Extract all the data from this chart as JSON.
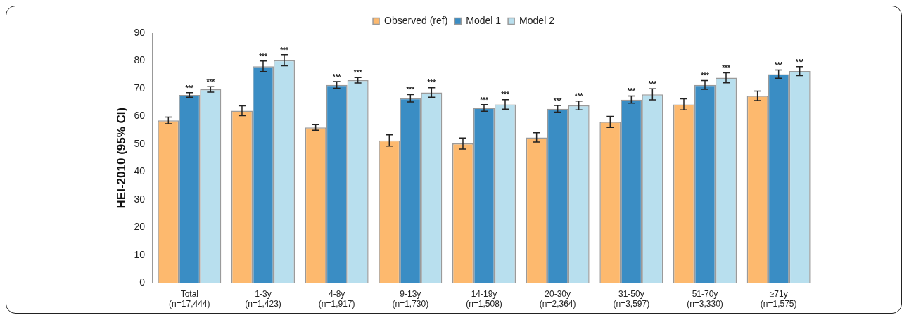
{
  "chart_data": {
    "type": "bar",
    "ylabel": "HEI-2010 (95% CI)",
    "categories": [
      "Total\n(n=17,444)",
      "1-3y\n(n=1,423)",
      "4-8y\n(n=1,917)",
      "9-13y\n(n=1,730)",
      "14-19y\n(n=1,508)",
      "20-30y\n(n=2,364)",
      "31-50y\n(n=3,597)",
      "51-70y\n(n=3,330)",
      "≥71y\n(n=1,575)"
    ],
    "series": [
      {
        "name": "Observed (ref)",
        "color": "#fdb96e",
        "values": [
          58.5,
          62,
          56,
          51.3,
          50.2,
          52.4,
          58,
          64.3,
          67.4
        ],
        "errors": [
          1.2,
          1.8,
          1,
          2,
          2,
          1.7,
          2,
          2,
          1.7
        ]
      },
      {
        "name": "Model 1",
        "color": "#3a8dc4",
        "values": [
          67.7,
          78,
          71.3,
          66.5,
          63,
          62.7,
          66,
          71.3,
          75.2
        ],
        "errors": [
          0.8,
          1.9,
          1.2,
          1.3,
          1.2,
          1.2,
          1.3,
          1.6,
          1.5
        ],
        "value_labels": [
          "***",
          "***",
          "***",
          "***",
          "***",
          "***",
          "***",
          "***",
          "***"
        ]
      },
      {
        "name": "Model 2",
        "color": "#b8dfee",
        "values": [
          69.7,
          80.2,
          73,
          68.6,
          64.3,
          63.9,
          67.9,
          73.9,
          76.3
        ],
        "errors": [
          1,
          2,
          1,
          1.7,
          1.7,
          1.6,
          2,
          1.8,
          1.6
        ],
        "value_labels": [
          "***",
          "***",
          "***",
          "***",
          "***",
          "***",
          "***",
          "***",
          "***"
        ]
      }
    ],
    "ylim": [
      0,
      90
    ],
    "yticks": [
      0,
      10,
      20,
      30,
      40,
      50,
      60,
      70,
      80,
      90
    ],
    "grid": false,
    "legend": "top"
  }
}
